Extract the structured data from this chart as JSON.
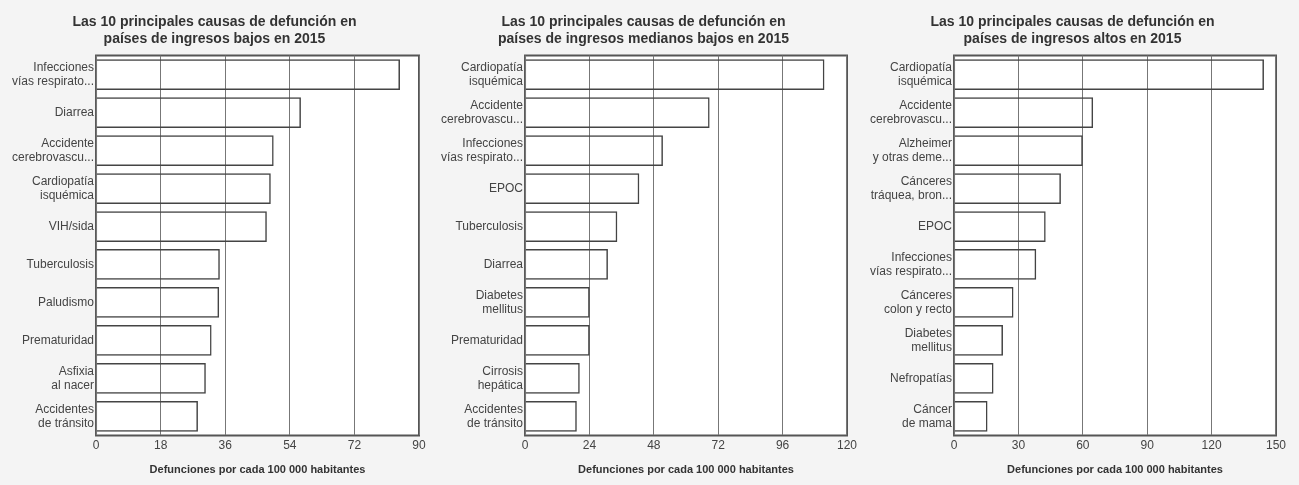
{
  "chart_data": [
    {
      "type": "bar",
      "orientation": "horizontal",
      "title": "Las 10 principales causas de defunción en\npaíses de ingresos bajos en 2015",
      "xlabel": "Defunciones por cada 100 000 habitantes",
      "categories": [
        "Infecciones\nvías respirato...",
        "Diarrea",
        "Accidente\ncerebrovascu...",
        "Cardiopatía\nisquémica",
        "VIH/sida",
        "Tuberculosis",
        "Paludismo",
        "Prematuridad",
        "Asfixia\nal nacer",
        "Accidentes\nde tránsito"
      ],
      "values": [
        84.7,
        57.1,
        49.5,
        48.7,
        47.6,
        34.5,
        34.3,
        32.2,
        30.6,
        28.4
      ],
      "color": "#444444",
      "xlim": [
        0,
        90
      ],
      "xticks": [
        0,
        18,
        36,
        54,
        72,
        90
      ],
      "grid": "x",
      "legend": false
    },
    {
      "type": "bar",
      "orientation": "horizontal",
      "title": "Las 10 principales causas de defunción en\npaíses de ingresos medianos bajos en 2015",
      "xlabel": "Defunciones por cada 100 000 habitantes",
      "categories": [
        "Cardiopatía\nisquémica",
        "Accidente\ncerebrovascu...",
        "Infecciones\nvías respirato...",
        "EPOC",
        "Tuberculosis",
        "Diarrea",
        "Diabetes\nmellitus",
        "Prematuridad",
        "Cirrosis\nhepática",
        "Accidentes\nde tránsito"
      ],
      "values": [
        111.6,
        68.8,
        51.4,
        42.6,
        34.4,
        30.9,
        24.1,
        24.1,
        20.4,
        19.3
      ],
      "color": "#444444",
      "xlim": [
        0,
        120
      ],
      "xticks": [
        0,
        24,
        48,
        72,
        96,
        120
      ],
      "grid": "x",
      "legend": false
    },
    {
      "type": "bar",
      "orientation": "horizontal",
      "title": "Las 10 principales causas de defunción en\npaíses de ingresos altos en 2015",
      "xlabel": "Defunciones por cada 100 000 habitantes",
      "categories": [
        "Cardiopatía\nisquémica",
        "Accidente\ncerebrovascu...",
        "Alzheimer\ny otras deme...",
        "Cánceres\ntráquea, bron...",
        "EPOC",
        "Infecciones\nvías respirato...",
        "Cánceres\ncolon y recto",
        "Diabetes\nmellitus",
        "Nefropatías",
        "Cáncer\nde mama"
      ],
      "values": [
        144.4,
        64.8,
        60,
        49.8,
        42.7,
        38.3,
        27.7,
        22.8,
        18.4,
        15.6
      ],
      "color": "#444444",
      "xlim": [
        0,
        150
      ],
      "xticks": [
        0,
        30,
        60,
        90,
        120,
        150
      ],
      "grid": "x",
      "legend": false
    }
  ]
}
